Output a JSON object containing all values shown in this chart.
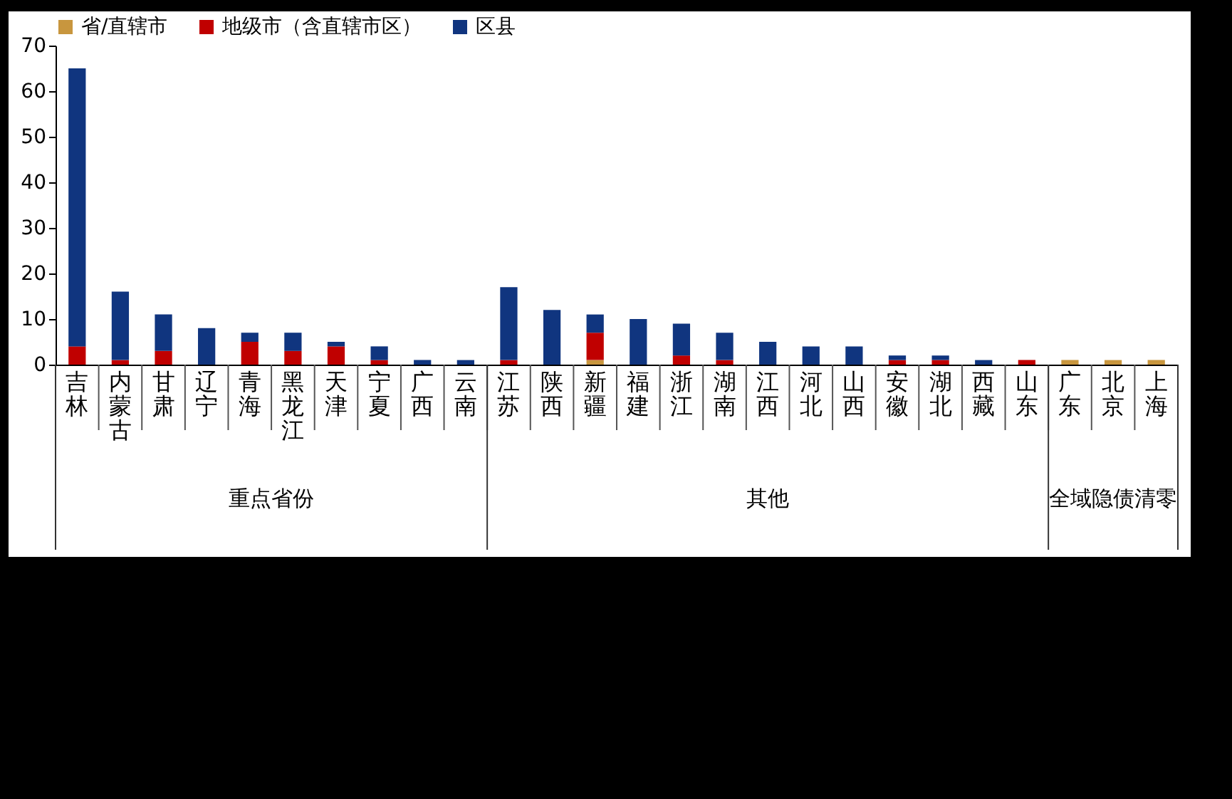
{
  "chart_data": {
    "type": "bar",
    "stacked": true,
    "categories": [
      "吉林",
      "内蒙古",
      "甘肃",
      "辽宁",
      "青海",
      "黑龙江",
      "天津",
      "宁夏",
      "广西",
      "云南",
      "江苏",
      "陕西",
      "新疆",
      "福建",
      "浙江",
      "湖南",
      "江西",
      "河北",
      "山西",
      "安徽",
      "湖北",
      "西藏",
      "山东",
      "广东",
      "北京",
      "上海"
    ],
    "series": [
      {
        "name": "省/直辖市",
        "color": "#c8963e",
        "values": [
          0,
          0,
          0,
          0,
          0,
          0,
          0,
          0,
          0,
          0,
          0,
          0,
          1,
          0,
          0,
          0,
          0,
          0,
          0,
          0,
          0,
          0,
          0,
          1,
          1,
          1
        ]
      },
      {
        "name": "地级市（含直辖市区）",
        "color": "#c00000",
        "values": [
          4,
          1,
          3,
          0,
          5,
          3,
          4,
          1,
          0,
          0,
          1,
          0,
          6,
          0,
          2,
          1,
          0,
          0,
          0,
          1,
          1,
          0,
          1,
          0,
          0,
          0
        ]
      },
      {
        "name": "区县",
        "color": "#10357f",
        "values": [
          61,
          15,
          8,
          8,
          2,
          4,
          1,
          3,
          1,
          1,
          16,
          12,
          4,
          10,
          7,
          6,
          5,
          4,
          4,
          1,
          1,
          1,
          0,
          0,
          0,
          0
        ]
      }
    ],
    "ylim": [
      0,
      70
    ],
    "yticks": [
      0,
      10,
      20,
      30,
      40,
      50,
      60,
      70
    ],
    "grid": false,
    "legend": "top",
    "annotations": [
      "重点省份",
      "其他",
      "全域隐债清零"
    ]
  }
}
